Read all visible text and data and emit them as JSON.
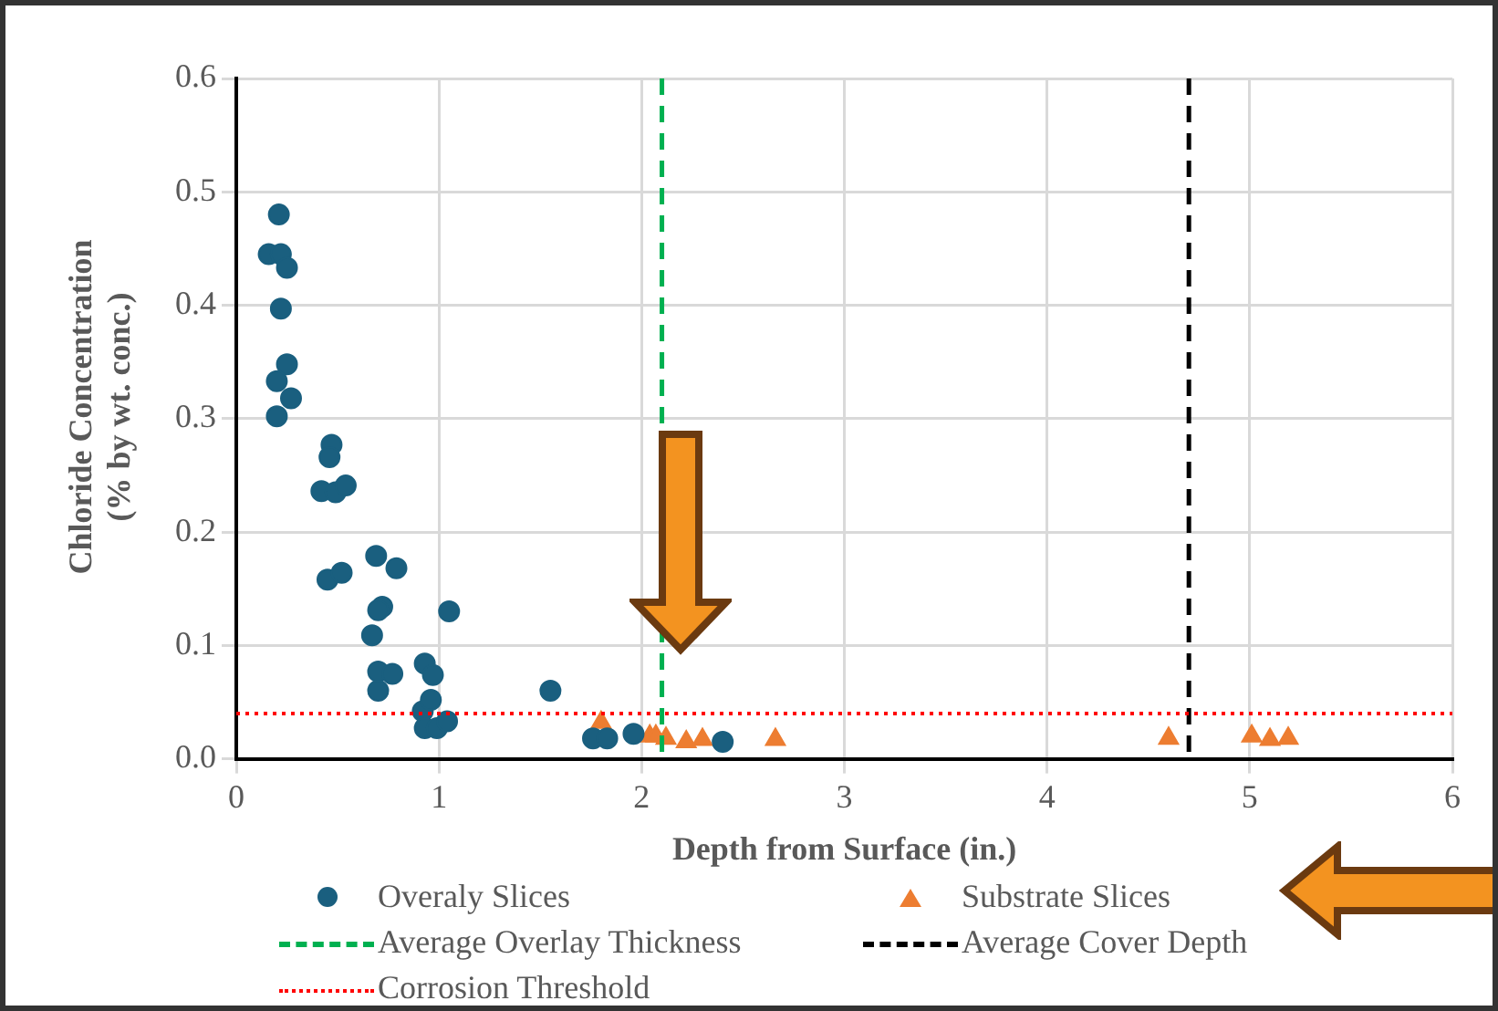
{
  "chart_data": {
    "type": "scatter",
    "xlabel": "Depth from Surface (in.)",
    "ylabel": "Chloride Concentration (% by wt. conc.)",
    "xlim": [
      0,
      6
    ],
    "xticks": [
      0,
      1,
      2,
      3,
      4,
      5,
      6
    ],
    "ylim": [
      0,
      0.6
    ],
    "yticks": [
      {
        "value": 0,
        "label": "0.0"
      },
      {
        "value": 0.1,
        "label": "0.1"
      },
      {
        "value": 0.2,
        "label": "0.2"
      },
      {
        "value": 0.3,
        "label": "0.3"
      },
      {
        "value": 0.4,
        "label": "0.4"
      },
      {
        "value": 0.5,
        "label": "0.5"
      },
      {
        "value": 0.6,
        "label": "0.6"
      }
    ],
    "grid": true,
    "legend": "bottom",
    "series": [
      {
        "name": "Overaly Slices",
        "color": "#1a5f7f",
        "marker": "circle",
        "x": [
          0.21,
          0.16,
          0.22,
          0.25,
          0.22,
          0.25,
          0.2,
          0.27,
          0.2,
          0.47,
          0.46,
          0.42,
          0.49,
          0.54,
          0.69,
          0.79,
          0.45,
          0.52,
          0.72,
          0.7,
          1.05,
          0.67,
          0.7,
          0.77,
          0.7,
          0.93,
          0.97,
          0.92,
          0.96,
          0.93,
          0.99,
          1.04,
          1.55,
          1.76,
          1.83,
          1.96,
          2.4
        ],
        "values": [
          0.48,
          0.445,
          0.445,
          0.433,
          0.397,
          0.348,
          0.333,
          0.318,
          0.302,
          0.277,
          0.266,
          0.236,
          0.235,
          0.241,
          0.179,
          0.168,
          0.158,
          0.164,
          0.134,
          0.131,
          0.13,
          0.109,
          0.077,
          0.075,
          0.06,
          0.084,
          0.074,
          0.042,
          0.052,
          0.027,
          0.027,
          0.033,
          0.06,
          0.018,
          0.018,
          0.022,
          0.015
        ]
      },
      {
        "name": "Substrate Slices",
        "color": "#ed7d31",
        "marker": "triangle",
        "x": [
          1.8,
          2.04,
          2.07,
          2.12,
          2.22,
          2.3,
          2.66,
          4.6,
          5.01,
          5.1,
          5.19
        ],
        "values": [
          0.032,
          0.02,
          0.02,
          0.018,
          0.015,
          0.017,
          0.017,
          0.018,
          0.02,
          0.017,
          0.018
        ]
      }
    ],
    "ref_lines": [
      {
        "axis": "x",
        "value": 2.1,
        "label": "Average Overlay Thickness",
        "color": "#00b050",
        "line_style": "dashed"
      },
      {
        "axis": "x",
        "value": 4.7,
        "label": "Average Cover Depth",
        "color": "#000000",
        "line_style": "dashed"
      },
      {
        "axis": "y",
        "value": 0.04,
        "label": "Corrosion Threshold",
        "color": "#ff0000",
        "line_style": "dotted"
      }
    ]
  }
}
